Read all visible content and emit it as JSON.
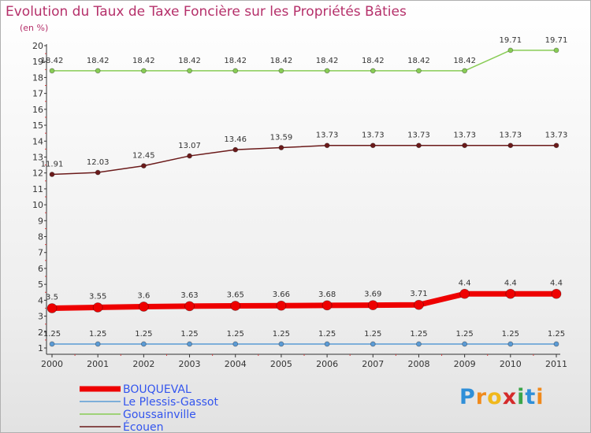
{
  "chart_data": {
    "type": "line",
    "title": "Evolution du Taux de Taxe Foncière sur les Propriétés Bâties",
    "ylabel": "(en %)",
    "xlabel": "",
    "ylim": [
      1,
      20
    ],
    "yticks": [
      1,
      2,
      3,
      4,
      5,
      6,
      7,
      8,
      9,
      10,
      11,
      12,
      13,
      14,
      15,
      16,
      17,
      18,
      19,
      20
    ],
    "categories": [
      "2000",
      "2001",
      "2002",
      "2003",
      "2004",
      "2005",
      "2006",
      "2007",
      "2008",
      "2009",
      "2010",
      "2011"
    ],
    "series": [
      {
        "name": "BOUQUEVAL",
        "color": "#ee0000",
        "legend_color": "#3355ee",
        "values": [
          3.5,
          3.55,
          3.6,
          3.63,
          3.65,
          3.66,
          3.68,
          3.69,
          3.71,
          4.4,
          4.4,
          4.4
        ],
        "labels": [
          "3.5",
          "3.55",
          "3.6",
          "3.63",
          "3.65",
          "3.66",
          "3.68",
          "3.69",
          "3.71",
          "4.4",
          "4.4",
          "4.4"
        ]
      },
      {
        "name": "Le Plessis-Gassot",
        "color": "#5b9bd5",
        "legend_color": "#3355ee",
        "values": [
          1.25,
          1.25,
          1.25,
          1.25,
          1.25,
          1.25,
          1.25,
          1.25,
          1.25,
          1.25,
          1.25,
          1.25
        ],
        "labels": [
          "1.25",
          "1.25",
          "1.25",
          "1.25",
          "1.25",
          "1.25",
          "1.25",
          "1.25",
          "1.25",
          "1.25",
          "1.25",
          "1.25"
        ]
      },
      {
        "name": "Goussainville",
        "color": "#88cc55",
        "legend_color": "#3355ee",
        "values": [
          18.42,
          18.42,
          18.42,
          18.42,
          18.42,
          18.42,
          18.42,
          18.42,
          18.42,
          18.42,
          19.71,
          19.71
        ],
        "labels": [
          "18.42",
          "18.42",
          "18.42",
          "18.42",
          "18.42",
          "18.42",
          "18.42",
          "18.42",
          "18.42",
          "18.42",
          "19.71",
          "19.71"
        ]
      },
      {
        "name": "Écouen",
        "color": "#6b1a1a",
        "legend_color": "#3355ee",
        "values": [
          11.91,
          12.03,
          12.45,
          13.07,
          13.46,
          13.59,
          13.73,
          13.73,
          13.73,
          13.73,
          13.73,
          13.73
        ],
        "labels": [
          "11.91",
          "12.03",
          "12.45",
          "13.07",
          "13.46",
          "13.59",
          "13.73",
          "13.73",
          "13.73",
          "13.73",
          "13.73",
          "13.73"
        ]
      }
    ]
  },
  "logo": {
    "letters": [
      "P",
      "r",
      "o",
      "x",
      "i",
      "t",
      "i"
    ],
    "colors": [
      "#2f8fd8",
      "#f08a1c",
      "#f0b81c",
      "#d42a2a",
      "#3aa54a",
      "#2f8fd8",
      "#f08a1c"
    ]
  }
}
